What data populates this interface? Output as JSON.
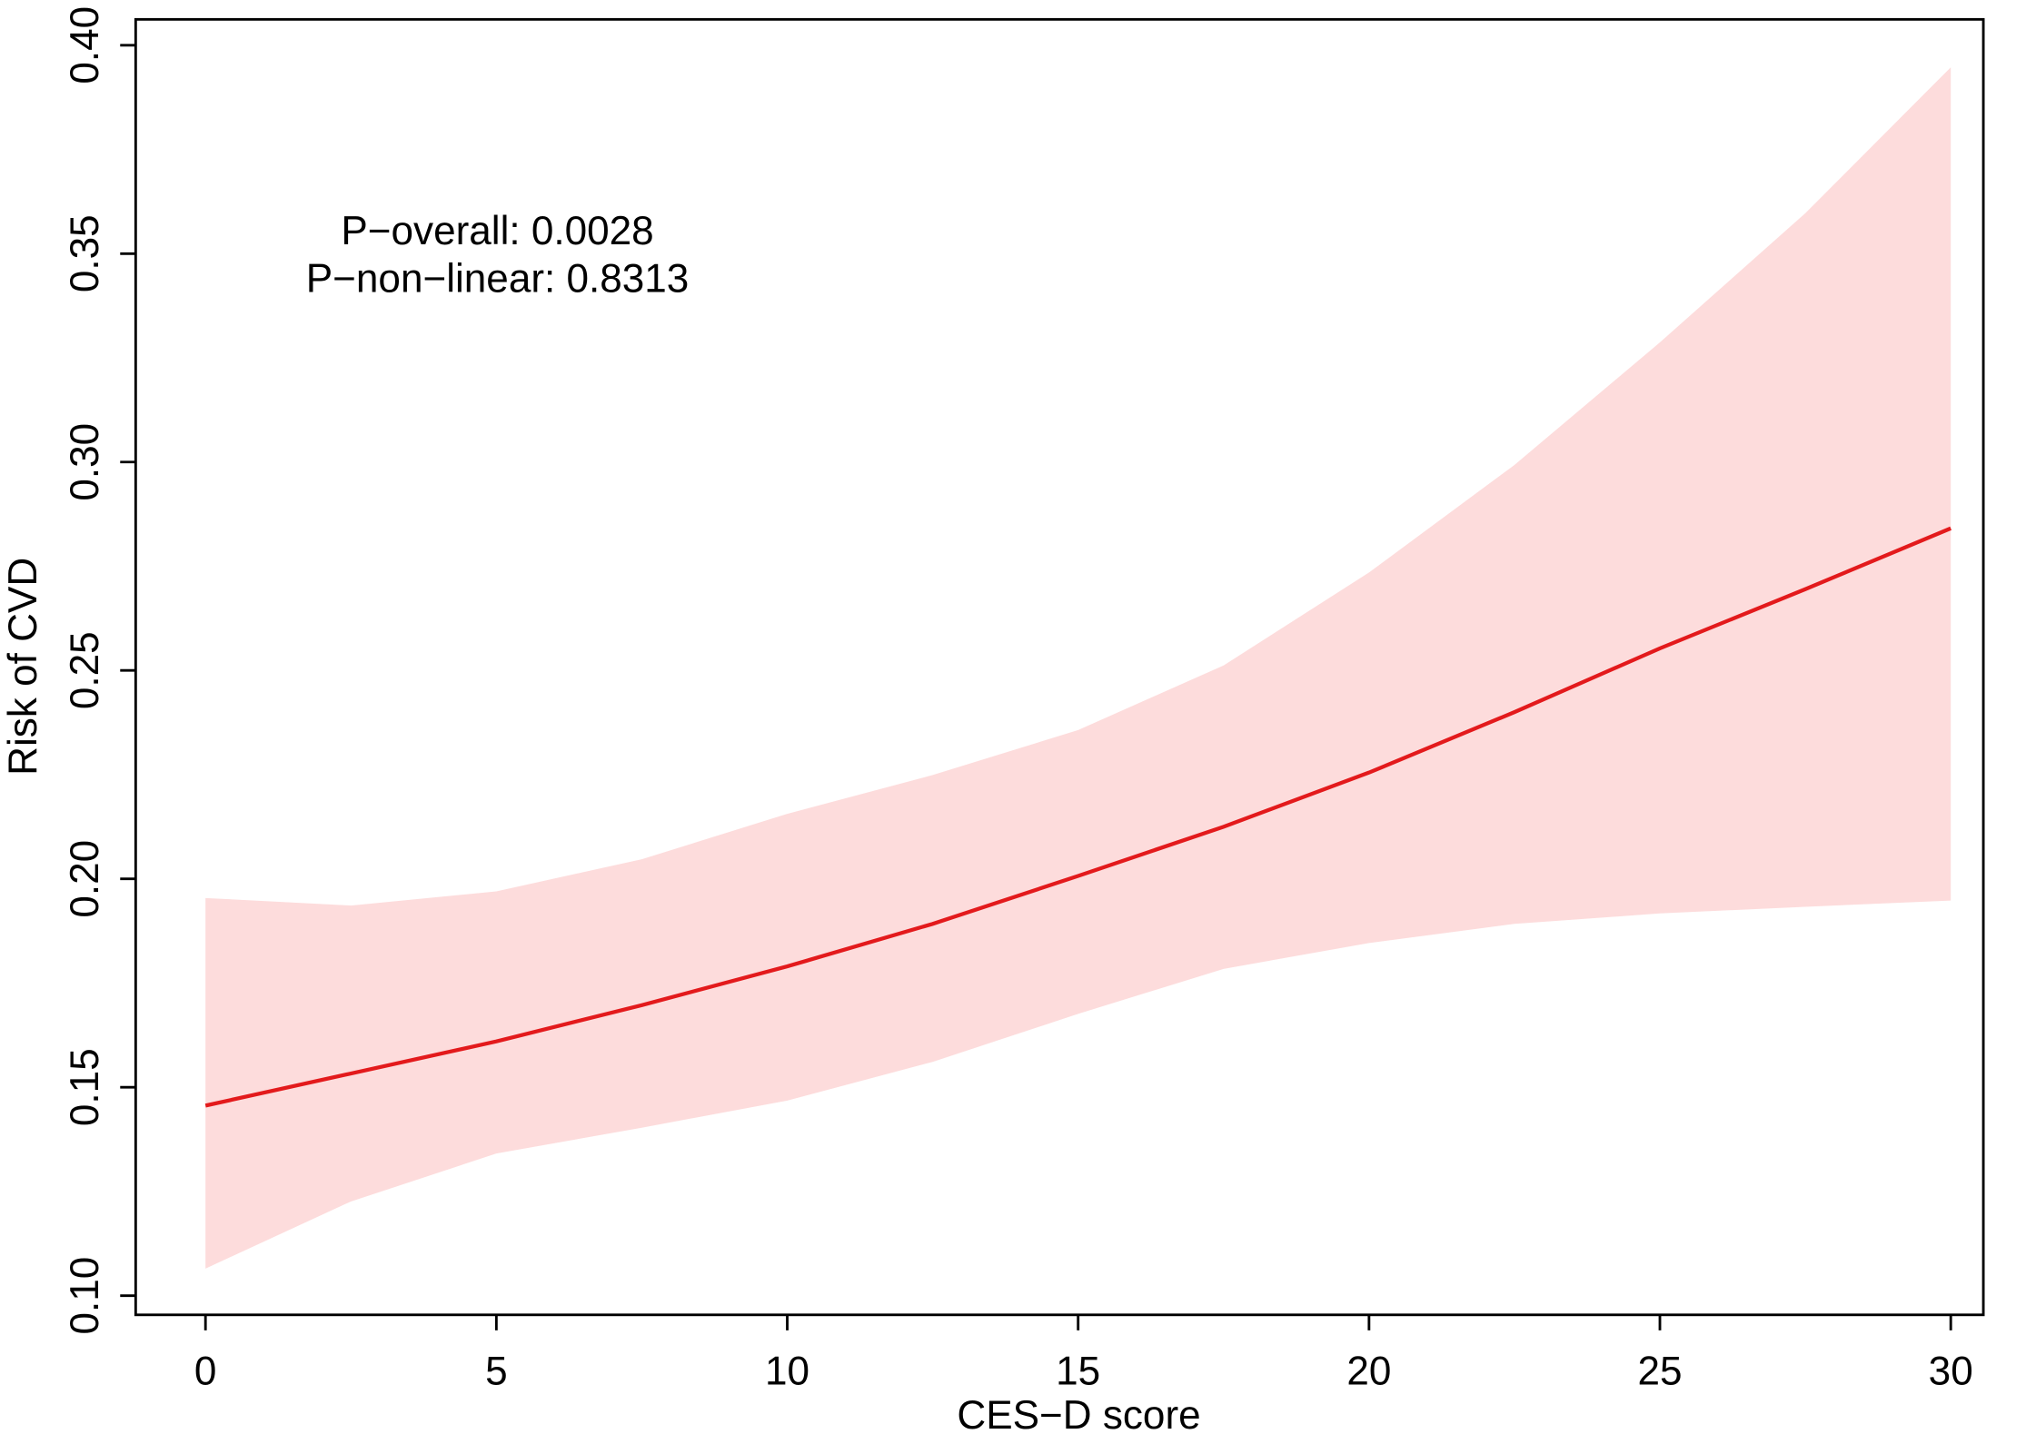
{
  "chart_data": {
    "type": "line",
    "x_label": "CES−D score",
    "y_label": "Risk of CVD",
    "annotations": [
      "P−overall: 0.0028",
      "P−non−linear: 0.8313"
    ],
    "x": [
      0,
      2.5,
      5,
      7.5,
      10,
      12.5,
      15,
      17.5,
      20,
      22.5,
      25,
      27.5,
      30
    ],
    "values": [
      0.1456,
      0.1533,
      0.161,
      0.1697,
      0.179,
      0.1892,
      0.2007,
      0.2125,
      0.2255,
      0.24,
      0.2553,
      0.2695,
      0.2841
    ],
    "upper": [
      0.1954,
      0.1936,
      0.197,
      0.2047,
      0.2156,
      0.2249,
      0.2357,
      0.2512,
      0.2735,
      0.2993,
      0.3287,
      0.3597,
      0.3947
    ],
    "lower": [
      0.1065,
      0.1226,
      0.1341,
      0.1403,
      0.1468,
      0.1561,
      0.1676,
      0.1784,
      0.1846,
      0.1892,
      0.1917,
      0.1933,
      0.1948
    ],
    "color": "#e31a1c",
    "band_color": "#fddcdc",
    "xlim": [
      -1.2,
      30.56
    ],
    "ylim": [
      0.0954,
      0.4062
    ],
    "xticks": [
      0,
      5,
      10,
      15,
      20,
      25,
      30
    ],
    "yticks": [
      {
        "value": 0.1,
        "label": "0.10"
      },
      0.15,
      {
        "value": 0.2,
        "label": "0.20"
      },
      0.25,
      {
        "value": 0.3,
        "label": "0.30"
      },
      0.35,
      {
        "value": 0.4,
        "label": "0.40"
      }
    ]
  }
}
